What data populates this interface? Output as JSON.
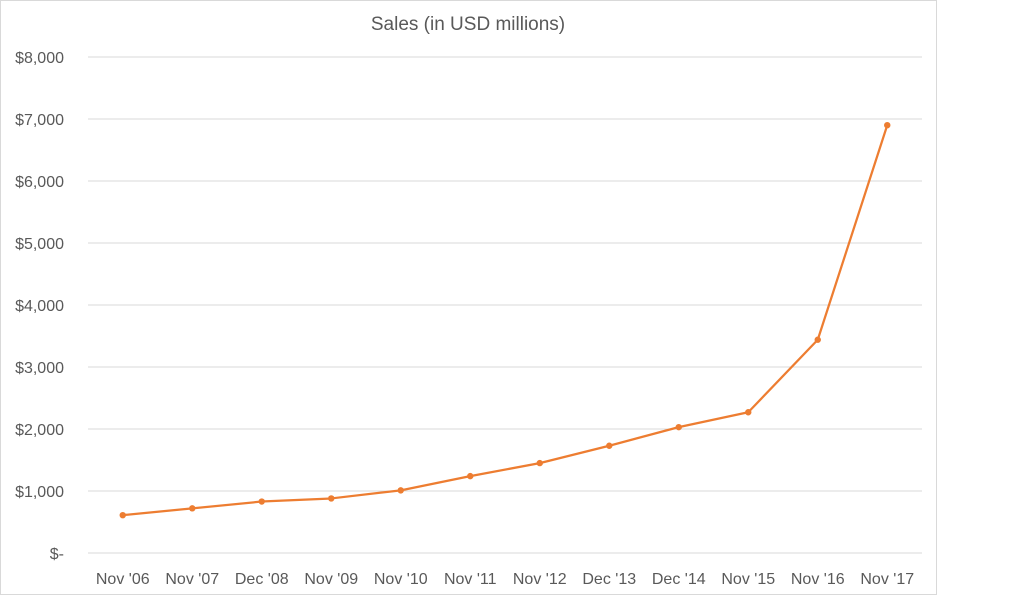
{
  "chart_data": {
    "type": "line",
    "title": "Sales (in USD millions)",
    "xlabel": "",
    "ylabel": "",
    "categories": [
      "Nov '06",
      "Nov '07",
      "Dec '08",
      "Nov '09",
      "Nov '10",
      "Nov '11",
      "Nov '12",
      "Dec '13",
      "Dec '14",
      "Nov '15",
      "Nov '16",
      "Nov '17"
    ],
    "series": [
      {
        "values": [
          610,
          720,
          830,
          880,
          1010,
          1240,
          1450,
          1730,
          2030,
          2270,
          3440,
          6900
        ],
        "color": "#ED7D31"
      }
    ],
    "ylim": [
      0,
      8000
    ],
    "y_ticks": [
      {
        "value": 0,
        "label": "$-"
      },
      {
        "value": 1000,
        "label": "$1,000"
      },
      {
        "value": 2000,
        "label": "$2,000"
      },
      {
        "value": 3000,
        "label": "$3,000"
      },
      {
        "value": 4000,
        "label": "$4,000"
      },
      {
        "value": 5000,
        "label": "$5,000"
      },
      {
        "value": 6000,
        "label": "$6,000"
      },
      {
        "value": 7000,
        "label": "$7,000"
      },
      {
        "value": 8000,
        "label": "$8,000"
      }
    ],
    "grid": true,
    "legend": "none",
    "gridline_color": "#d9d9d9",
    "text_color": "#595959"
  }
}
